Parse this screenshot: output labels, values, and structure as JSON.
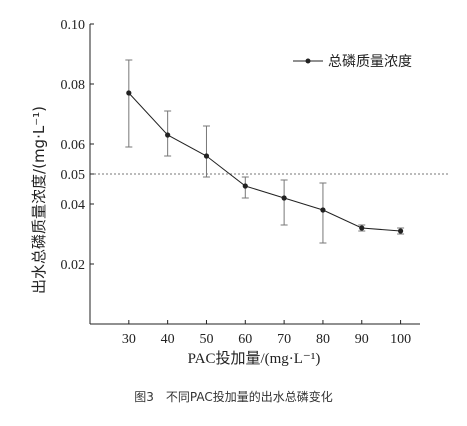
{
  "chart_data": {
    "type": "line",
    "x": [
      30,
      40,
      50,
      60,
      70,
      80,
      90,
      100
    ],
    "series": [
      {
        "name": "总磷质量浓度",
        "values": [
          0.077,
          0.063,
          0.056,
          0.046,
          0.042,
          0.038,
          0.032,
          0.031
        ],
        "error_low": [
          0.059,
          0.056,
          0.049,
          0.042,
          0.033,
          0.027,
          0.031,
          0.03
        ],
        "error_high": [
          0.088,
          0.071,
          0.066,
          0.049,
          0.048,
          0.047,
          0.033,
          0.032
        ]
      }
    ],
    "xlabel": "PAC投加量/(mg·L⁻¹)",
    "ylabel": "出水总磷质量浓度/(mg·L⁻¹)",
    "xticks": [
      "30",
      "40",
      "50",
      "60",
      "70",
      "80",
      "90",
      "100"
    ],
    "yticks": [
      "0.02",
      "0.04",
      "0.05",
      "0.06",
      "0.08",
      "0.10"
    ],
    "ytick_values": [
      0.02,
      0.04,
      0.05,
      0.06,
      0.08,
      0.1
    ],
    "ylim": [
      0.0,
      0.1
    ],
    "xlim": [
      20,
      105
    ],
    "reference_line": {
      "y": 0.05,
      "style": "dashed"
    },
    "legend_position": "top-right",
    "caption": "图3　不同PAC投加量的出水总磷变化"
  }
}
